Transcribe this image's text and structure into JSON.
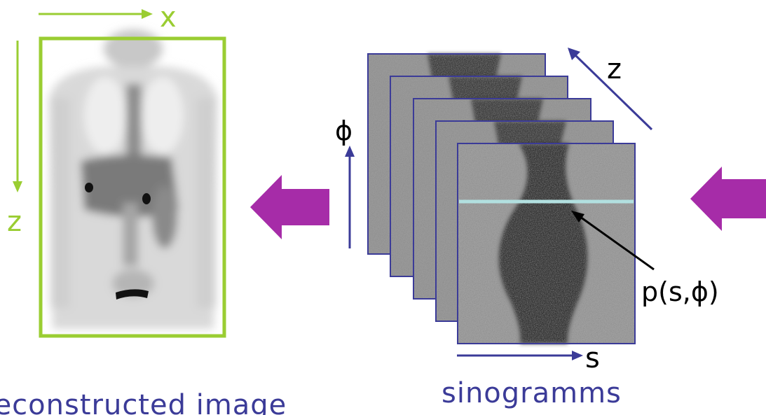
{
  "reconstructed": {
    "x_axis_label": "x",
    "z_axis_label": "z",
    "caption": "reconstructed image",
    "frame_color": "#9acd32"
  },
  "sinograms": {
    "phi_axis_label": "ϕ",
    "s_axis_label": "s",
    "z_axis_label": "z",
    "point_label": "p(s,ϕ)",
    "caption": "sinogramms",
    "frame_color": "#3b3b98",
    "highlight_color": "#b2e0e0"
  },
  "arrows": {
    "color": "#a62ca8",
    "icon": "left-arrow-icon"
  }
}
